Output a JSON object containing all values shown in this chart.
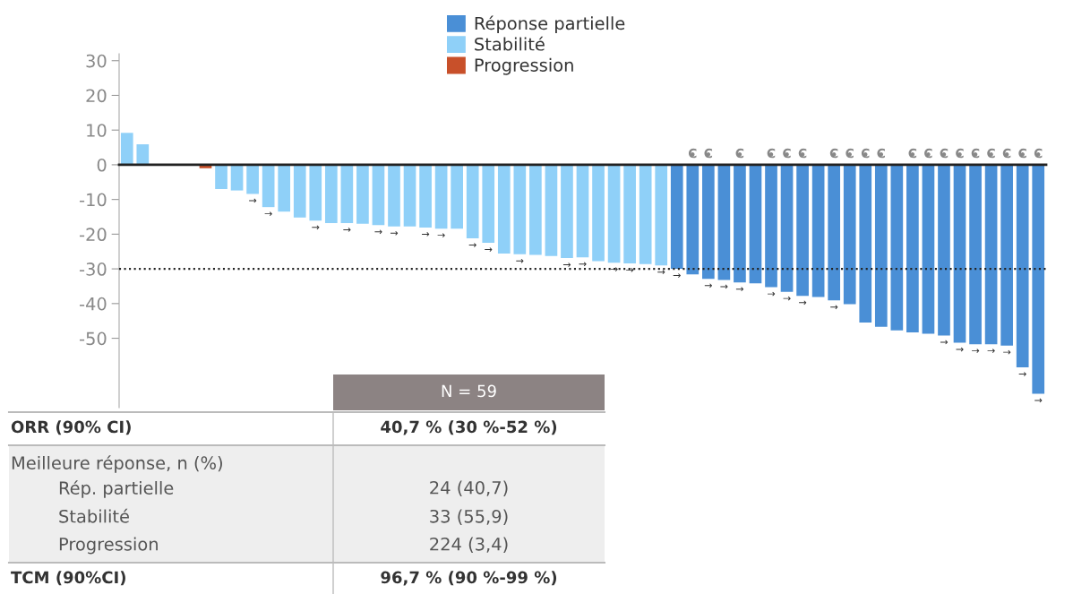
{
  "chart_data": {
    "type": "bar",
    "categories": [
      null,
      null,
      null,
      null,
      null,
      null,
      null,
      null,
      null,
      null,
      null,
      null,
      null,
      null,
      null,
      null,
      null,
      null,
      null,
      null,
      null,
      null,
      null,
      null,
      null,
      null,
      null,
      null,
      null,
      null,
      null,
      null,
      null,
      null,
      null,
      null,
      null,
      null,
      null,
      null,
      null,
      null,
      null,
      null,
      null,
      null,
      null,
      null,
      null,
      null,
      null,
      null,
      null,
      null,
      null,
      null,
      null,
      null,
      null
    ],
    "series": [
      {
        "name": "Réponse partielle",
        "color": "#4a8fd6",
        "values": [
          null,
          null,
          null,
          null,
          null,
          null,
          null,
          null,
          null,
          null,
          null,
          null,
          null,
          null,
          null,
          null,
          null,
          null,
          null,
          null,
          null,
          null,
          null,
          null,
          null,
          null,
          null,
          null,
          null,
          null,
          null,
          null,
          null,
          null,
          null,
          -30,
          -31.6,
          -32.9,
          -33.2,
          -33.9,
          -34.2,
          -35.3,
          -36.6,
          -37.8,
          -38.1,
          -39.1,
          -40.2,
          -45.5,
          -46.7,
          -47.7,
          -48.3,
          -48.7,
          -49.2,
          -51.3,
          -51.7,
          -51.7,
          -52.1,
          -58.4,
          -66
        ],
        "value_labels": [
          null,
          null,
          null,
          null,
          null,
          null,
          null,
          null,
          null,
          null,
          null,
          null,
          null,
          null,
          null,
          null,
          null,
          null,
          null,
          null,
          null,
          null,
          null,
          null,
          null,
          null,
          null,
          null,
          null,
          null,
          null,
          null,
          null,
          null,
          null,
          "→",
          null,
          "→",
          "→",
          "→",
          null,
          "→",
          "→",
          "→",
          null,
          "→",
          null,
          null,
          null,
          null,
          null,
          null,
          "→",
          "→",
          "→",
          "→",
          "→",
          "→",
          "→"
        ]
      },
      {
        "name": "Stabilité",
        "color": "#8fd0f8",
        "values": [
          9.2,
          5.9,
          0,
          0,
          null,
          null,
          -7,
          -7.4,
          -8.4,
          -12.2,
          -13.5,
          -15.2,
          -16.1,
          -16.8,
          -16.8,
          -17,
          -17.4,
          -17.8,
          -17.8,
          -18.1,
          -18.4,
          -18.4,
          -21.2,
          -22.5,
          -25.6,
          -25.8,
          -26,
          -26.3,
          -26.9,
          -26.7,
          -27.8,
          -28.2,
          -28.4,
          -28.6,
          -29,
          null,
          null,
          null,
          null,
          null,
          null,
          null,
          null,
          null,
          null,
          null,
          null,
          null,
          null,
          null,
          null,
          null,
          null,
          null,
          null,
          null,
          null,
          null,
          null
        ],
        "value_labels": [
          null,
          null,
          null,
          null,
          null,
          null,
          null,
          null,
          "→",
          "→",
          null,
          null,
          "→",
          null,
          "→",
          null,
          "→",
          "→",
          null,
          "→",
          "→",
          null,
          "→",
          "→",
          null,
          "→",
          null,
          null,
          "→",
          "→",
          null,
          "→",
          "→",
          null,
          "→",
          null,
          null,
          null,
          null,
          null,
          null,
          null,
          null,
          null,
          null,
          null,
          null,
          null,
          null,
          null,
          null,
          null,
          null,
          null,
          null,
          null,
          null,
          null,
          null
        ]
      },
      {
        "name": "Progression",
        "color": "#c8502a",
        "values": [
          null,
          null,
          null,
          null,
          0,
          -1,
          null,
          null,
          null,
          null,
          null,
          null,
          null,
          null,
          null,
          null,
          null,
          null,
          null,
          null,
          null,
          null,
          null,
          null,
          null,
          null,
          null,
          null,
          null,
          null,
          null,
          null,
          null,
          null,
          null,
          null,
          null,
          null,
          null,
          null,
          null,
          null,
          null,
          null,
          null,
          null,
          null,
          null,
          null,
          null,
          null,
          null,
          null,
          null,
          null,
          null,
          null,
          null,
          null
        ]
      },
      {
        "type": "scatter",
        "marker": "circle",
        "color": "#888888",
        "values": [
          null,
          null,
          null,
          null,
          null,
          null,
          null,
          null,
          null,
          null,
          null,
          null,
          null,
          null,
          null,
          null,
          null,
          null,
          null,
          null,
          null,
          null,
          null,
          null,
          null,
          null,
          null,
          null,
          null,
          null,
          null,
          null,
          null,
          null,
          null,
          null,
          3,
          3,
          null,
          3,
          null,
          3,
          3,
          3,
          null,
          3,
          3,
          3,
          3,
          null,
          3,
          3,
          3,
          3,
          3,
          3,
          3,
          3,
          3
        ],
        "value_labels": [
          null,
          null,
          null,
          null,
          null,
          null,
          null,
          null,
          null,
          null,
          null,
          null,
          null,
          null,
          null,
          null,
          null,
          null,
          null,
          null,
          null,
          null,
          null,
          null,
          null,
          null,
          null,
          null,
          null,
          null,
          null,
          null,
          null,
          null,
          null,
          null,
          "C",
          "C",
          null,
          "C",
          null,
          "C",
          "C",
          "C",
          null,
          "C",
          "C",
          "C",
          "C",
          null,
          "C",
          "C",
          "C",
          "C",
          "C",
          "C",
          "C",
          "C",
          "C"
        ]
      }
    ],
    "ylim": [
      -70,
      32
    ],
    "yticks": [
      30,
      20,
      10,
      0,
      -10,
      -20,
      -30,
      -40,
      -50
    ],
    "ref_lines": [
      {
        "axis": "y",
        "value": -30,
        "color": "#222222",
        "line_style": "dotted"
      }
    ],
    "grid": false,
    "legend": "top",
    "annotations": [
      "N = 59",
      "ORR (90% CI)",
      "40,7 % (30 %-52 %)",
      "Meilleure réponse, n (%)",
      "Rép. partielle",
      "24 (40,7)",
      "Stabilité",
      "33 (55,9)",
      "Progression",
      "224 (3,4)",
      "TCM (90%CI)",
      "96,7 % (90 %-99 %)"
    ]
  }
}
